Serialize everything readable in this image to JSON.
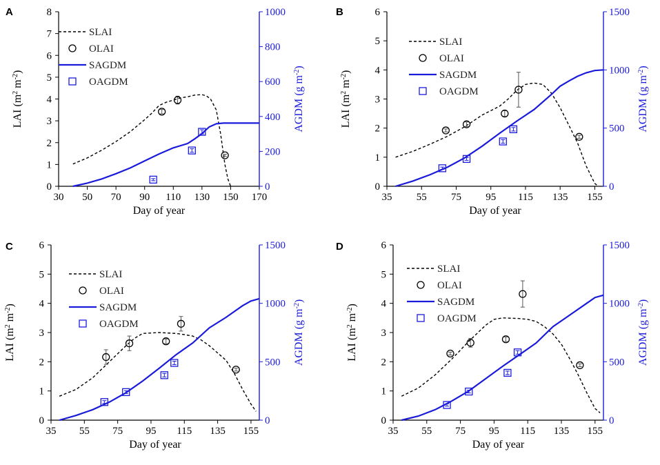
{
  "colors": {
    "simulated_lai": "#000000",
    "biomass": "#1a1adb",
    "axis_black": "#000000",
    "axis_blue": "#1a1adb"
  },
  "chart_data": [
    {
      "type": "line",
      "panel": "A",
      "xlabel": "Day of year",
      "ylabel": "LAI (m² m⁻²)",
      "y2label": "AGDM (g m⁻²)",
      "xlim": [
        30,
        170
      ],
      "xticks": [
        30,
        50,
        70,
        90,
        110,
        130,
        150,
        170
      ],
      "ylim": [
        0,
        8
      ],
      "yticks": [
        0,
        1,
        2,
        3,
        4,
        5,
        6,
        7,
        8
      ],
      "y2lim": [
        0,
        1000
      ],
      "y2ticks": [
        0,
        200,
        400,
        600,
        800,
        1000
      ],
      "legend": [
        "SLAI",
        "OLAI",
        "SAGDM",
        "OAGDM"
      ],
      "legend_position": "top-left",
      "series": [
        {
          "name": "SLAI",
          "axis": "left",
          "style": "dashed",
          "x": [
            40,
            50,
            60,
            70,
            80,
            90,
            95,
            100,
            105,
            110,
            115,
            120,
            125,
            130,
            133,
            136,
            140,
            143,
            146,
            148,
            150
          ],
          "y": [
            1.02,
            1.3,
            1.65,
            2.05,
            2.5,
            3.05,
            3.35,
            3.7,
            3.85,
            3.95,
            4.05,
            4.1,
            4.18,
            4.2,
            4.15,
            4.0,
            3.5,
            2.4,
            1.0,
            0.35,
            0.0
          ]
        },
        {
          "name": "OLAI",
          "axis": "left",
          "style": "circle",
          "x": [
            102,
            113,
            146
          ],
          "y": [
            3.42,
            3.95,
            1.42
          ],
          "err": [
            0.1,
            0.18,
            0.05
          ]
        },
        {
          "name": "SAGDM",
          "axis": "right",
          "style": "solid",
          "x": [
            40,
            50,
            60,
            70,
            80,
            90,
            100,
            110,
            120,
            125,
            130,
            135,
            140,
            145,
            150,
            160,
            170
          ],
          "y": [
            0,
            18,
            42,
            72,
            105,
            145,
            185,
            220,
            245,
            272,
            302,
            340,
            358,
            362,
            362,
            362,
            362
          ]
        },
        {
          "name": "OAGDM",
          "axis": "right",
          "style": "square",
          "x": [
            96,
            123,
            130
          ],
          "y": [
            38,
            205,
            312
          ],
          "err": [
            6,
            10,
            12
          ]
        }
      ]
    },
    {
      "type": "line",
      "panel": "B",
      "xlabel": "Day of year",
      "ylabel": "LAI (m² m⁻²)",
      "y2label": "AGDM (g m⁻²)",
      "xlim": [
        35,
        160
      ],
      "xticks": [
        35,
        55,
        75,
        95,
        115,
        135,
        155
      ],
      "ylim": [
        0,
        6
      ],
      "yticks": [
        0,
        1,
        2,
        3,
        4,
        5,
        6
      ],
      "y2lim": [
        0,
        1500
      ],
      "y2ticks": [
        0,
        500,
        1000,
        1500
      ],
      "legend": [
        "SLAI",
        "OLAI",
        "SAGDM",
        "OAGDM"
      ],
      "legend_position": "top-left",
      "series": [
        {
          "name": "SLAI",
          "axis": "left",
          "style": "dashed",
          "x": [
            40,
            50,
            60,
            70,
            80,
            90,
            100,
            105,
            110,
            115,
            120,
            125,
            130,
            135,
            140,
            145,
            150,
            155,
            157
          ],
          "y": [
            1.0,
            1.2,
            1.45,
            1.72,
            2.05,
            2.45,
            2.75,
            3.0,
            3.3,
            3.5,
            3.55,
            3.5,
            3.2,
            2.7,
            2.1,
            1.5,
            0.7,
            0.1,
            0.0
          ]
        },
        {
          "name": "OLAI",
          "axis": "left",
          "style": "circle",
          "x": [
            69,
            81,
            103,
            111,
            146
          ],
          "y": [
            1.92,
            2.13,
            2.5,
            3.32,
            1.7
          ],
          "err": [
            0.05,
            0.08,
            0.1,
            0.6,
            0.05
          ]
        },
        {
          "name": "SAGDM",
          "axis": "right",
          "style": "solid",
          "x": [
            40,
            50,
            60,
            70,
            80,
            90,
            100,
            110,
            120,
            130,
            135,
            140,
            145,
            150,
            155,
            160
          ],
          "y": [
            0,
            45,
            100,
            165,
            245,
            345,
            455,
            560,
            660,
            790,
            860,
            905,
            945,
            975,
            995,
            1000
          ]
        },
        {
          "name": "OAGDM",
          "axis": "right",
          "style": "square",
          "x": [
            67,
            81,
            102,
            108
          ],
          "y": [
            155,
            235,
            385,
            490
          ],
          "err": [
            10,
            12,
            15,
            15
          ]
        }
      ]
    },
    {
      "type": "line",
      "panel": "C",
      "xlabel": "Day of year",
      "ylabel": "LAI (m² m⁻²)",
      "y2label": "AGDM (g m⁻²)",
      "xlim": [
        35,
        160
      ],
      "xticks": [
        35,
        55,
        75,
        95,
        115,
        135,
        155
      ],
      "ylim": [
        0,
        6
      ],
      "yticks": [
        0,
        1,
        2,
        3,
        4,
        5,
        6
      ],
      "y2lim": [
        0,
        1500
      ],
      "y2ticks": [
        0,
        500,
        1000,
        1500
      ],
      "legend": [
        "SLAI",
        "OLAI",
        "SAGDM",
        "OAGDM"
      ],
      "legend_position": "top-left",
      "series": [
        {
          "name": "SLAI",
          "axis": "left",
          "style": "dashed",
          "x": [
            40,
            50,
            60,
            70,
            80,
            85,
            90,
            100,
            110,
            115,
            120,
            125,
            130,
            135,
            140,
            145,
            150,
            155,
            158
          ],
          "y": [
            0.82,
            1.05,
            1.45,
            2.0,
            2.55,
            2.8,
            2.97,
            3.0,
            2.97,
            2.93,
            2.88,
            2.75,
            2.55,
            2.3,
            2.05,
            1.6,
            1.05,
            0.55,
            0.3
          ]
        },
        {
          "name": "OLAI",
          "axis": "left",
          "style": "circle",
          "x": [
            68,
            82,
            104,
            113,
            146
          ],
          "y": [
            2.16,
            2.63,
            2.7,
            3.3,
            1.73
          ],
          "err": [
            0.25,
            0.25,
            0.08,
            0.25,
            0.05
          ]
        },
        {
          "name": "SAGDM",
          "axis": "right",
          "style": "solid",
          "x": [
            40,
            50,
            60,
            70,
            80,
            90,
            100,
            110,
            120,
            130,
            140,
            150,
            155,
            160
          ],
          "y": [
            0,
            40,
            90,
            155,
            235,
            335,
            445,
            560,
            660,
            790,
            880,
            980,
            1020,
            1040
          ]
        },
        {
          "name": "OAGDM",
          "axis": "right",
          "style": "square",
          "x": [
            67,
            80,
            103,
            109
          ],
          "y": [
            155,
            240,
            385,
            490
          ],
          "err": [
            12,
            12,
            15,
            15
          ]
        }
      ]
    },
    {
      "type": "line",
      "panel": "D",
      "xlabel": "Day of year",
      "ylabel": "LAI (m² m⁻²)",
      "y2label": "AGDM (g m⁻²)",
      "xlim": [
        35,
        160
      ],
      "xticks": [
        35,
        55,
        75,
        95,
        115,
        135,
        155
      ],
      "ylim": [
        0,
        6
      ],
      "yticks": [
        0,
        1,
        2,
        3,
        4,
        5,
        6
      ],
      "y2lim": [
        0,
        1500
      ],
      "y2ticks": [
        0,
        500,
        1000,
        1500
      ],
      "legend": [
        "SLAI",
        "OLAI",
        "SAGDM",
        "OAGDM"
      ],
      "legend_position": "top-left",
      "series": [
        {
          "name": "SLAI",
          "axis": "left",
          "style": "dashed",
          "x": [
            40,
            50,
            60,
            70,
            80,
            90,
            95,
            100,
            110,
            115,
            120,
            125,
            130,
            135,
            140,
            145,
            150,
            155,
            158
          ],
          "y": [
            0.82,
            1.1,
            1.55,
            2.1,
            2.7,
            3.25,
            3.45,
            3.5,
            3.48,
            3.45,
            3.38,
            3.2,
            2.95,
            2.6,
            2.1,
            1.55,
            0.95,
            0.4,
            0.25
          ]
        },
        {
          "name": "OLAI",
          "axis": "left",
          "style": "circle",
          "x": [
            69,
            81,
            102,
            112,
            146
          ],
          "y": [
            2.28,
            2.65,
            2.77,
            4.32,
            1.88
          ],
          "err": [
            0.05,
            0.15,
            0.08,
            0.45,
            0.05
          ]
        },
        {
          "name": "SAGDM",
          "axis": "right",
          "style": "solid",
          "x": [
            40,
            50,
            60,
            70,
            80,
            90,
            100,
            110,
            120,
            130,
            140,
            150,
            155,
            160
          ],
          "y": [
            0,
            35,
            90,
            165,
            250,
            355,
            460,
            560,
            660,
            800,
            900,
            1000,
            1050,
            1070
          ]
        },
        {
          "name": "OAGDM",
          "axis": "right",
          "style": "square",
          "x": [
            67,
            80,
            103,
            109
          ],
          "y": [
            130,
            245,
            405,
            580
          ],
          "err": [
            10,
            12,
            15,
            15
          ]
        }
      ]
    }
  ]
}
